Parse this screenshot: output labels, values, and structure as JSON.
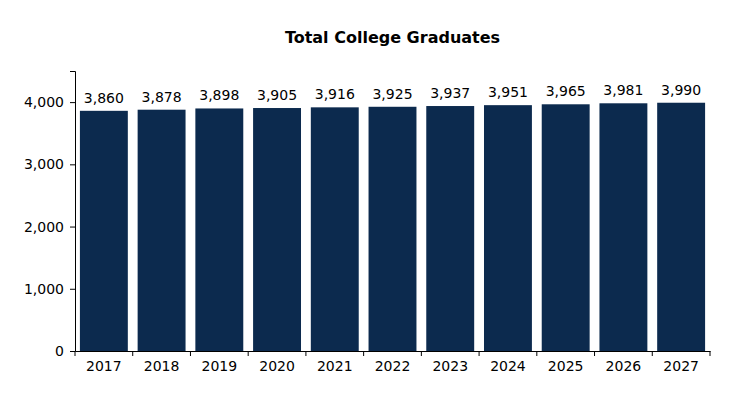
{
  "chart_data": {
    "type": "bar",
    "title": "Total College Graduates",
    "categories": [
      "2017",
      "2018",
      "2019",
      "2020",
      "2021",
      "2022",
      "2023",
      "2024",
      "2025",
      "2026",
      "2027"
    ],
    "values": [
      3860,
      3878,
      3898,
      3905,
      3916,
      3925,
      3937,
      3951,
      3965,
      3981,
      3990
    ],
    "value_labels": [
      "3,860",
      "3,878",
      "3,898",
      "3,905",
      "3,916",
      "3,925",
      "3,937",
      "3,951",
      "3,965",
      "3,981",
      "3,990"
    ],
    "color": "#0c2a4e",
    "ylim": [
      0,
      4500
    ],
    "yticks": [
      0,
      {
        "value": 1000,
        "label": "1,000"
      },
      {
        "value": 2000,
        "label": "2,000"
      },
      {
        "value": 3000,
        "label": "3,000"
      },
      {
        "value": 4000,
        "label": "4,000"
      }
    ],
    "grid": false,
    "data_labels": true
  }
}
